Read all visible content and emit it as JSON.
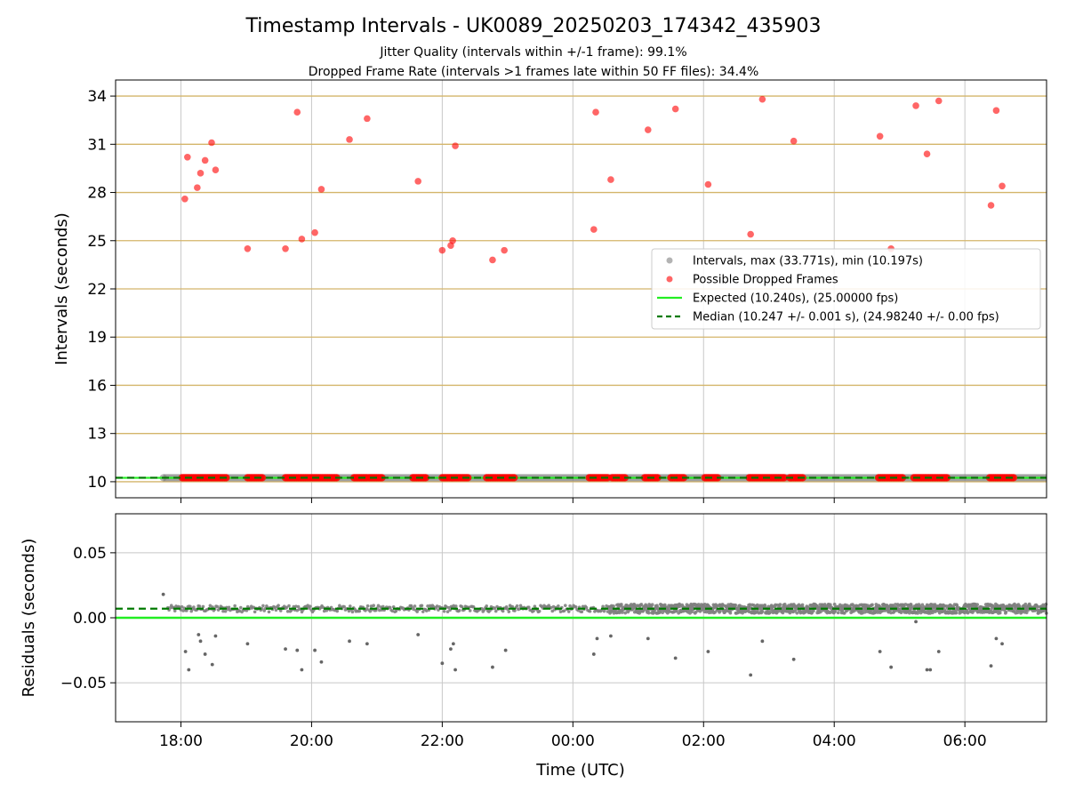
{
  "chart_data": [
    {
      "type": "scatter",
      "title": "Timestamp Intervals - UK0089_20250203_174342_435903",
      "subtitle_1": "Jitter Quality (intervals within +/-1 frame): 99.1%",
      "subtitle_2": "Dropped Frame Rate (intervals >1 frames late within 50 FF files): 34.4%",
      "ylabel": "Intervals (seconds)",
      "xlim_hours": [
        17.0,
        31.25
      ],
      "ylim": [
        9.0,
        35.0
      ],
      "y_ticks": [
        {
          "value": 10,
          "label": "10"
        },
        {
          "value": 13,
          "label": "13"
        },
        {
          "value": 16,
          "label": "16"
        },
        {
          "value": 19,
          "label": "19"
        },
        {
          "value": 22,
          "label": "22"
        },
        {
          "value": 25,
          "label": "25"
        },
        {
          "value": 28,
          "label": "28"
        },
        {
          "value": 31,
          "label": "31"
        },
        {
          "value": 34,
          "label": "34"
        }
      ],
      "grid": true,
      "legend_position": "center-right",
      "legend": [
        {
          "label": "Intervals, max (33.771s), min (10.197s)",
          "marker": "grey-dot"
        },
        {
          "label": "Possible Dropped Frames",
          "marker": "red-dot"
        },
        {
          "label": "Expected (10.240s), (25.00000 fps)",
          "marker": "green-line"
        },
        {
          "label": "Median (10.247 +/- 0.001 s), (24.98240 +/- 0.00 fps)",
          "marker": "dashed-dark-green-line"
        }
      ],
      "expected": 10.24,
      "median": 10.247,
      "intervals_start_hours": 17.73,
      "intervals_end_hours": 31.25,
      "dropped_outliers": [
        {
          "x": 18.06,
          "y": 27.6
        },
        {
          "x": 18.1,
          "y": 30.2
        },
        {
          "x": 18.25,
          "y": 28.3
        },
        {
          "x": 18.3,
          "y": 29.2
        },
        {
          "x": 18.37,
          "y": 30.0
        },
        {
          "x": 18.47,
          "y": 31.1
        },
        {
          "x": 18.53,
          "y": 29.4
        },
        {
          "x": 19.02,
          "y": 24.5
        },
        {
          "x": 19.6,
          "y": 24.5
        },
        {
          "x": 19.78,
          "y": 33.0
        },
        {
          "x": 19.85,
          "y": 25.1
        },
        {
          "x": 20.05,
          "y": 25.5
        },
        {
          "x": 20.15,
          "y": 28.2
        },
        {
          "x": 20.58,
          "y": 31.3
        },
        {
          "x": 20.85,
          "y": 32.6
        },
        {
          "x": 21.63,
          "y": 28.7
        },
        {
          "x": 22.0,
          "y": 24.4
        },
        {
          "x": 22.13,
          "y": 24.7
        },
        {
          "x": 22.16,
          "y": 25.0
        },
        {
          "x": 22.2,
          "y": 30.9
        },
        {
          "x": 22.77,
          "y": 23.8
        },
        {
          "x": 22.95,
          "y": 24.4
        },
        {
          "x": 24.32,
          "y": 25.7
        },
        {
          "x": 24.35,
          "y": 33.0
        },
        {
          "x": 24.58,
          "y": 28.8
        },
        {
          "x": 25.15,
          "y": 31.9
        },
        {
          "x": 25.57,
          "y": 33.2
        },
        {
          "x": 26.07,
          "y": 28.5
        },
        {
          "x": 26.72,
          "y": 25.4
        },
        {
          "x": 26.9,
          "y": 33.8
        },
        {
          "x": 27.38,
          "y": 31.2
        },
        {
          "x": 28.7,
          "y": 31.5
        },
        {
          "x": 28.87,
          "y": 24.5
        },
        {
          "x": 29.25,
          "y": 33.4
        },
        {
          "x": 29.42,
          "y": 30.4
        },
        {
          "x": 29.6,
          "y": 33.7
        },
        {
          "x": 30.4,
          "y": 27.2
        },
        {
          "x": 30.48,
          "y": 33.1
        },
        {
          "x": 30.57,
          "y": 28.4
        }
      ],
      "dropped_baseline_ranges": [
        [
          18.02,
          18.7
        ],
        [
          19.02,
          19.25
        ],
        [
          19.6,
          20.4
        ],
        [
          20.65,
          20.85
        ],
        [
          20.88,
          21.1
        ],
        [
          21.55,
          21.75
        ],
        [
          22.0,
          22.4
        ],
        [
          22.68,
          23.1
        ],
        [
          24.25,
          24.55
        ],
        [
          24.6,
          24.8
        ],
        [
          25.1,
          25.3
        ],
        [
          25.5,
          25.7
        ],
        [
          26.02,
          26.22
        ],
        [
          26.7,
          27.25
        ],
        [
          27.32,
          27.52
        ],
        [
          28.68,
          29.05
        ],
        [
          29.22,
          29.75
        ],
        [
          30.38,
          30.75
        ]
      ]
    },
    {
      "type": "scatter",
      "ylabel": "Residuals (seconds)",
      "xlabel": "Time (UTC)",
      "xlim_hours": [
        17.0,
        31.25
      ],
      "ylim": [
        -0.08,
        0.08
      ],
      "y_ticks": [
        {
          "value": 0.05,
          "label": "0.05"
        },
        {
          "value": 0.0,
          "label": "0.00"
        },
        {
          "value": -0.05,
          "label": "−0.05"
        }
      ],
      "x_ticks": [
        {
          "value": 18,
          "label": "18:00"
        },
        {
          "value": 20,
          "label": "20:00"
        },
        {
          "value": 22,
          "label": "22:00"
        },
        {
          "value": 24,
          "label": "00:00"
        },
        {
          "value": 26,
          "label": "02:00"
        },
        {
          "value": 28,
          "label": "04:00"
        },
        {
          "value": 30,
          "label": "06:00"
        }
      ],
      "grid": true,
      "expected_residual": 0.0,
      "median_residual": 0.007,
      "dense_band_hours": [
        24.55,
        31.25
      ],
      "sparse_band_hours": [
        17.8,
        24.55
      ],
      "negative_outliers": [
        {
          "x": 18.07,
          "y": -0.026
        },
        {
          "x": 18.12,
          "y": -0.04
        },
        {
          "x": 18.27,
          "y": -0.013
        },
        {
          "x": 18.3,
          "y": -0.018
        },
        {
          "x": 18.37,
          "y": -0.028
        },
        {
          "x": 18.48,
          "y": -0.036
        },
        {
          "x": 18.53,
          "y": -0.014
        },
        {
          "x": 19.02,
          "y": -0.02
        },
        {
          "x": 19.6,
          "y": -0.024
        },
        {
          "x": 19.78,
          "y": -0.025
        },
        {
          "x": 19.85,
          "y": -0.04
        },
        {
          "x": 20.05,
          "y": -0.025
        },
        {
          "x": 20.15,
          "y": -0.034
        },
        {
          "x": 20.58,
          "y": -0.018
        },
        {
          "x": 20.85,
          "y": -0.02
        },
        {
          "x": 21.63,
          "y": -0.013
        },
        {
          "x": 22.0,
          "y": -0.035
        },
        {
          "x": 22.13,
          "y": -0.024
        },
        {
          "x": 22.17,
          "y": -0.02
        },
        {
          "x": 22.2,
          "y": -0.04
        },
        {
          "x": 22.77,
          "y": -0.038
        },
        {
          "x": 22.97,
          "y": -0.025
        },
        {
          "x": 24.32,
          "y": -0.028
        },
        {
          "x": 24.37,
          "y": -0.016
        },
        {
          "x": 24.58,
          "y": -0.014
        },
        {
          "x": 25.15,
          "y": -0.016
        },
        {
          "x": 25.57,
          "y": -0.031
        },
        {
          "x": 26.07,
          "y": -0.026
        },
        {
          "x": 26.72,
          "y": -0.044
        },
        {
          "x": 26.9,
          "y": -0.018
        },
        {
          "x": 27.38,
          "y": -0.032
        },
        {
          "x": 28.7,
          "y": -0.026
        },
        {
          "x": 28.87,
          "y": -0.038
        },
        {
          "x": 29.25,
          "y": -0.003
        },
        {
          "x": 29.42,
          "y": -0.04
        },
        {
          "x": 29.47,
          "y": -0.04
        },
        {
          "x": 29.6,
          "y": -0.026
        },
        {
          "x": 30.4,
          "y": -0.037
        },
        {
          "x": 30.48,
          "y": -0.016
        },
        {
          "x": 30.57,
          "y": -0.02
        }
      ],
      "positive_outliers": [
        {
          "x": 17.73,
          "y": 0.018
        }
      ]
    }
  ],
  "colors": {
    "interval_grey": "#808080",
    "dropped_red": "#ff0000",
    "expected_green": "#22ee22",
    "median_dark_green": "#007a00",
    "hgrid_gold": "#d4b56a",
    "grid_grey": "#c8c8c8"
  }
}
